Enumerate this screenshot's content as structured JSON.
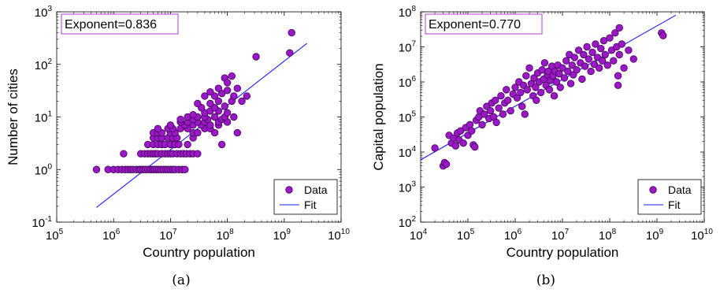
{
  "colors": {
    "marker_fill": "#9b17c7",
    "marker_edge": "#3d0850",
    "fit_line": "#1a1aff",
    "annotation_border": "#b53bd6"
  },
  "chart_data": [
    {
      "type": "scatter",
      "panel": "(a)",
      "xlabel": "Country population",
      "ylabel": "Number of cities",
      "xscale": "log",
      "yscale": "log",
      "xlim": [
        100000,
        10000000000
      ],
      "ylim": [
        0.1,
        1000
      ],
      "xticks": [
        {
          "base": "10",
          "exp": "5"
        },
        {
          "base": "10",
          "exp": "6"
        },
        {
          "base": "10",
          "exp": "7"
        },
        {
          "base": "10",
          "exp": "8"
        },
        {
          "base": "10",
          "exp": "9"
        },
        {
          "base": "10",
          "exp": "10"
        }
      ],
      "yticks": [
        {
          "base": "10",
          "exp": "-1"
        },
        {
          "base": "10",
          "exp": "0"
        },
        {
          "base": "10",
          "exp": "1"
        },
        {
          "base": "10",
          "exp": "2"
        },
        {
          "base": "10",
          "exp": "3"
        }
      ],
      "annotation": "Exponent=0.836",
      "legend": {
        "data": "Data",
        "fit": "Fit",
        "placement": "bottom-right"
      },
      "fit": {
        "x": [
          500000,
          2500000000
        ],
        "y": [
          0.19,
          250
        ]
      },
      "points": [
        [
          500000.0,
          1
        ],
        [
          800000.0,
          1
        ],
        [
          1000000.0,
          1
        ],
        [
          1200000.0,
          1
        ],
        [
          1400000.0,
          1
        ],
        [
          1600000.0,
          1
        ],
        [
          1800000.0,
          1
        ],
        [
          2000000.0,
          1
        ],
        [
          2200000.0,
          1
        ],
        [
          2500000.0,
          1
        ],
        [
          2800000.0,
          1
        ],
        [
          3000000.0,
          1
        ],
        [
          3300000.0,
          1
        ],
        [
          3600000.0,
          1
        ],
        [
          4000000.0,
          1
        ],
        [
          4400000.0,
          1
        ],
        [
          4800000.0,
          1
        ],
        [
          5200000.0,
          1
        ],
        [
          5700000.0,
          1
        ],
        [
          6200000.0,
          1
        ],
        [
          6800000.0,
          1
        ],
        [
          7500000.0,
          1
        ],
        [
          8300000.0,
          1
        ],
        [
          9000000.0,
          1
        ],
        [
          10000000.0,
          1
        ],
        [
          11000000.0,
          1
        ],
        [
          12000000.0,
          1
        ],
        [
          14000000.0,
          1
        ],
        [
          16000000.0,
          1
        ],
        [
          18000000.0,
          1
        ],
        [
          1500000.0,
          2
        ],
        [
          3000000.0,
          2
        ],
        [
          3500000.0,
          2
        ],
        [
          4000000.0,
          2
        ],
        [
          4500000.0,
          2
        ],
        [
          5000000.0,
          2
        ],
        [
          5500000.0,
          2
        ],
        [
          6000000.0,
          2
        ],
        [
          7000000.0,
          2
        ],
        [
          8000000.0,
          2
        ],
        [
          9000000.0,
          2
        ],
        [
          10000000.0,
          2
        ],
        [
          11000000.0,
          2
        ],
        [
          13000000.0,
          2
        ],
        [
          15000000.0,
          2
        ],
        [
          17000000.0,
          2
        ],
        [
          19000000.0,
          2
        ],
        [
          22000000.0,
          2
        ],
        [
          25000000.0,
          2
        ],
        [
          30000000.0,
          2
        ],
        [
          4000000.0,
          3
        ],
        [
          5000000.0,
          3
        ],
        [
          6000000.0,
          3
        ],
        [
          7000000.0,
          3
        ],
        [
          8000000.0,
          3
        ],
        [
          10000000.0,
          3
        ],
        [
          12000000.0,
          3
        ],
        [
          14000000.0,
          3
        ],
        [
          20000000.0,
          3
        ],
        [
          80000000.0,
          3
        ],
        [
          5000000.0,
          4
        ],
        [
          6000000.0,
          4
        ],
        [
          7000000.0,
          4
        ],
        [
          9000000.0,
          4
        ],
        [
          11000000.0,
          4
        ],
        [
          13000000.0,
          4
        ],
        [
          25000000.0,
          4
        ],
        [
          5000000.0,
          5
        ],
        [
          6000000.0,
          5
        ],
        [
          7000000.0,
          5
        ],
        [
          10000000.0,
          5
        ],
        [
          12000000.0,
          5
        ],
        [
          25000000.0,
          5
        ],
        [
          30000000.0,
          5
        ],
        [
          60000000.0,
          5
        ],
        [
          150000000.0,
          5
        ],
        [
          6000000.0,
          6
        ],
        [
          9000000.0,
          6
        ],
        [
          11000000.0,
          6
        ],
        [
          15000000.0,
          6
        ],
        [
          20000000.0,
          6
        ],
        [
          40000000.0,
          6
        ],
        [
          50000000.0,
          6
        ],
        [
          10000000.0,
          7
        ],
        [
          18000000.0,
          7
        ],
        [
          25000000.0,
          7
        ],
        [
          35000000.0,
          7
        ],
        [
          50000000.0,
          7
        ],
        [
          70000000.0,
          7
        ],
        [
          15000000.0,
          8
        ],
        [
          20000000.0,
          8
        ],
        [
          30000000.0,
          8
        ],
        [
          40000000.0,
          8
        ],
        [
          70000000.0,
          8
        ],
        [
          100000000.0,
          8
        ],
        [
          15000000.0,
          9
        ],
        [
          25000000.0,
          9
        ],
        [
          45000000.0,
          9
        ],
        [
          80000000.0,
          9
        ],
        [
          20000000.0,
          10
        ],
        [
          30000000.0,
          10
        ],
        [
          40000000.0,
          10
        ],
        [
          60000000.0,
          10
        ],
        [
          90000000.0,
          10
        ],
        [
          130000000.0,
          10
        ],
        [
          25000000.0,
          11
        ],
        [
          40000000.0,
          12
        ],
        [
          50000000.0,
          13
        ],
        [
          70000000.0,
          13
        ],
        [
          100000000.0,
          12
        ],
        [
          35000000.0,
          15
        ],
        [
          60000000.0,
          15
        ],
        [
          90000000.0,
          16
        ],
        [
          30000000.0,
          18
        ],
        [
          50000000.0,
          18
        ],
        [
          70000000.0,
          20
        ],
        [
          120000000.0,
          20
        ],
        [
          180000000.0,
          20
        ],
        [
          40000000.0,
          25
        ],
        [
          60000000.0,
          25
        ],
        [
          80000000.0,
          28
        ],
        [
          130000000.0,
          25
        ],
        [
          220000000.0,
          25
        ],
        [
          50000000.0,
          30
        ],
        [
          70000000.0,
          35
        ],
        [
          100000000.0,
          32
        ],
        [
          150000000.0,
          35
        ],
        [
          90000000.0,
          55
        ],
        [
          120000000.0,
          60
        ],
        [
          100000000.0,
          45
        ],
        [
          320000000.0,
          140
        ],
        [
          1250000000.0,
          165
        ],
        [
          1350000000.0,
          400
        ]
      ]
    },
    {
      "type": "scatter",
      "panel": "(b)",
      "xlabel": "Country population",
      "ylabel": "Capital population",
      "xscale": "log",
      "yscale": "log",
      "xlim": [
        10000,
        10000000000
      ],
      "ylim": [
        100,
        100000000
      ],
      "xticks": [
        {
          "base": "10",
          "exp": "4"
        },
        {
          "base": "10",
          "exp": "5"
        },
        {
          "base": "10",
          "exp": "6"
        },
        {
          "base": "10",
          "exp": "7"
        },
        {
          "base": "10",
          "exp": "8"
        },
        {
          "base": "10",
          "exp": "9"
        },
        {
          "base": "10",
          "exp": "10"
        }
      ],
      "yticks": [
        {
          "base": "10",
          "exp": "2"
        },
        {
          "base": "10",
          "exp": "3"
        },
        {
          "base": "10",
          "exp": "4"
        },
        {
          "base": "10",
          "exp": "5"
        },
        {
          "base": "10",
          "exp": "6"
        },
        {
          "base": "10",
          "exp": "7"
        },
        {
          "base": "10",
          "exp": "8"
        }
      ],
      "annotation": "Exponent=0.770",
      "legend": {
        "data": "Data",
        "fit": "Fit",
        "placement": "bottom-right"
      },
      "fit": {
        "x": [
          10000,
          2500000000
        ],
        "y": [
          6000,
          80000000
        ]
      },
      "points": [
        [
          20000.0,
          13000.0
        ],
        [
          30000.0,
          4000.0
        ],
        [
          32000.0,
          5000.0
        ],
        [
          35000.0,
          4500.0
        ],
        [
          40000.0,
          30000.0
        ],
        [
          45000.0,
          18000.0
        ],
        [
          50000.0,
          25000.0
        ],
        [
          55000.0,
          15000.0
        ],
        [
          60000.0,
          35000.0
        ],
        [
          65000.0,
          22000.0
        ],
        [
          70000.0,
          40000.0
        ],
        [
          80000.0,
          18000.0
        ],
        [
          90000.0,
          50000.0
        ],
        [
          100000.0,
          30000.0
        ],
        [
          110000.0,
          60000.0
        ],
        [
          120000.0,
          40000.0
        ],
        [
          130000.0,
          16000.0
        ],
        [
          140000.0,
          14000.0
        ],
        [
          150000.0,
          80000.0
        ],
        [
          170000.0,
          100000.0
        ],
        [
          180000.0,
          150000.0
        ],
        [
          200000.0,
          60000.0
        ],
        [
          220000.0,
          120000.0
        ],
        [
          250000.0,
          200000.0
        ],
        [
          280000.0,
          90000.0
        ],
        [
          300000.0,
          150000.0
        ],
        [
          320000.0,
          250000.0
        ],
        [
          350000.0,
          100000.0
        ],
        [
          380000.0,
          300000.0
        ],
        [
          400000.0,
          70000.0
        ],
        [
          450000.0,
          180000.0
        ],
        [
          500000.0,
          400000.0
        ],
        [
          550000.0,
          120000.0
        ],
        [
          600000.0,
          250000.0
        ],
        [
          650000.0,
          600000.0
        ],
        [
          700000.0,
          300000.0
        ],
        [
          800000.0,
          150000.0
        ],
        [
          900000.0,
          450000.0
        ],
        [
          1000000.0,
          700000.0
        ],
        [
          1100000.0,
          350000.0
        ],
        [
          1200000.0,
          1000000.0
        ],
        [
          1300000.0,
          500000.0
        ],
        [
          1400000.0,
          200000.0
        ],
        [
          1500000.0,
          800000.0
        ],
        [
          1600000.0,
          120000.0
        ],
        [
          1700000.0,
          1500000.0
        ],
        [
          1800000.0,
          600000.0
        ],
        [
          2000000.0,
          2500000.0
        ],
        [
          2200000.0,
          900000.0
        ],
        [
          2400000.0,
          400000.0
        ],
        [
          2500000.0,
          1300000.0
        ],
        [
          2700000.0,
          700000.0
        ],
        [
          2800000.0,
          300000.0
        ],
        [
          3000000.0,
          1800000.0
        ],
        [
          3200000.0,
          1000000.0
        ],
        [
          3500000.0,
          500000.0
        ],
        [
          3700000.0,
          2200000.0
        ],
        [
          4000000.0,
          1200000.0
        ],
        [
          4200000.0,
          3500000.0
        ],
        [
          4500000.0,
          800000.0
        ],
        [
          4800000.0,
          1600000.0
        ],
        [
          5000000.0,
          2000000.0
        ],
        [
          5300000.0,
          600000.0
        ],
        [
          5600000.0,
          1100000.0
        ],
        [
          6000000.0,
          2800000.0
        ],
        [
          6300000.0,
          1500000.0
        ],
        [
          6700000.0,
          400000.0
        ],
        [
          7000000.0,
          2000000.0
        ],
        [
          7500000.0,
          1000000.0
        ],
        [
          8000000.0,
          3000000.0
        ],
        [
          8500000.0,
          1700000.0
        ],
        [
          9000000.0,
          700000.0
        ],
        [
          10000000.0,
          2500000.0
        ],
        [
          11000000.0,
          1300000.0
        ],
        [
          12000000.0,
          4000000.0
        ],
        [
          13000000.0,
          2000000.0
        ],
        [
          14000000.0,
          6000000.0
        ],
        [
          15000000.0,
          900000.0
        ],
        [
          16000000.0,
          3000000.0
        ],
        [
          17000000.0,
          1600000.0
        ],
        [
          18000000.0,
          5000000.0
        ],
        [
          20000000.0,
          2200000.0
        ],
        [
          22000000.0,
          8000000.0
        ],
        [
          24000000.0,
          3500000.0
        ],
        [
          26000000.0,
          1200000.0
        ],
        [
          28000000.0,
          6000000.0
        ],
        [
          30000000.0,
          2800000.0
        ],
        [
          33000000.0,
          10000000.0
        ],
        [
          36000000.0,
          4500000.0
        ],
        [
          40000000.0,
          2000000.0
        ],
        [
          43000000.0,
          7000000.0
        ],
        [
          47000000.0,
          3200000.0
        ],
        [
          50000000.0,
          12000000.0
        ],
        [
          55000000.0,
          5000000.0
        ],
        [
          60000000.0,
          2500000.0
        ],
        [
          65000000.0,
          9000000.0
        ],
        [
          70000000.0,
          4000000.0
        ],
        [
          75000000.0,
          15000000.0
        ],
        [
          80000000.0,
          6000000.0
        ],
        [
          90000000.0,
          3000000.0
        ],
        [
          100000000.0,
          18000000.0
        ],
        [
          110000000.0,
          8000000.0
        ],
        [
          120000000.0,
          4000000.0
        ],
        [
          130000000.0,
          25000000.0
        ],
        [
          140000000.0,
          10000000.0
        ],
        [
          150000000.0,
          1500000.0
        ],
        [
          160000000.0,
          6000000.0
        ],
        [
          180000000.0,
          12000000.0
        ],
        [
          200000000.0,
          2500000.0
        ],
        [
          250000000.0,
          8000000.0
        ],
        [
          320000000.0,
          4500000.0
        ],
        [
          1250000000.0,
          25000000.0
        ],
        [
          1350000000.0,
          21000000.0
        ],
        [
          160000000.0,
          35000000.0
        ],
        [
          150000000.0,
          800000.0
        ]
      ]
    }
  ],
  "captions": [
    "(a)",
    "(b)"
  ]
}
